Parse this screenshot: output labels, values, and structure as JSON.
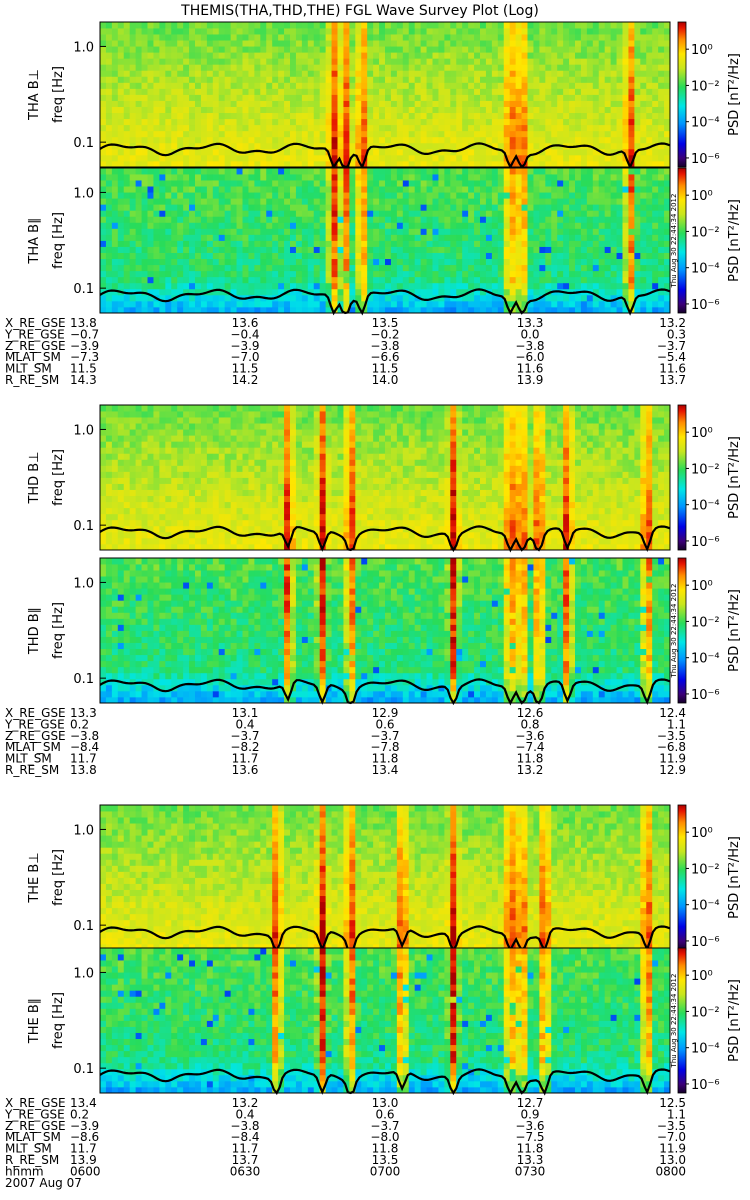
{
  "title": "THEMIS(THA,THD,THE) FGL Wave Survey Plot (Log)",
  "colorbar": {
    "label_prefix": "PSD",
    "label_unit": "[nT²/Hz]",
    "ticks": [
      "10⁰",
      "10⁻²",
      "10⁻⁴",
      "10⁻⁶"
    ],
    "range_log10": [
      -6.5,
      1.5
    ]
  },
  "stamp": "Thu Aug 30 22:44:34 2012",
  "chart_data": [
    {
      "type": "heatmap",
      "probe": "THA",
      "panels": [
        {
          "component": "THA B⊥",
          "ylabel": "freq [Hz]",
          "yscale": "log",
          "ylim": [
            0.055,
            1.8
          ],
          "yticks": [
            "1.0",
            "0.1"
          ]
        },
        {
          "component": "THA B∥",
          "ylabel": "freq [Hz]",
          "yscale": "log",
          "ylim": [
            0.055,
            1.8
          ],
          "yticks": [
            "1.0",
            "0.1"
          ]
        }
      ],
      "events": [
        0.41,
        0.43,
        0.46,
        0.72,
        0.74,
        0.93
      ],
      "trace": "black line near 0.08-0.1 Hz",
      "ephemeris": [
        {
          "name": "X_RE_GSE",
          "values": [
            "13.8",
            "13.6",
            "13.5",
            "13.3",
            "13.2"
          ]
        },
        {
          "name": "Y_RE_GSE",
          "values": [
            "−0.7",
            "−0.4",
            "−0.2",
            "0.0",
            "0.3"
          ]
        },
        {
          "name": "Z_RE_GSE",
          "values": [
            "−3.9",
            "−3.9",
            "−3.8",
            "−3.8",
            "−3.7"
          ]
        },
        {
          "name": "MLAT_SM",
          "values": [
            "−7.3",
            "−7.0",
            "−6.6",
            "−6.0",
            "−5.4"
          ]
        },
        {
          "name": "MLT_SM",
          "values": [
            "11.5",
            "11.5",
            "11.5",
            "11.6",
            "11.6"
          ]
        },
        {
          "name": "R_RE_SM",
          "values": [
            "14.3",
            "14.2",
            "14.0",
            "13.9",
            "13.7"
          ]
        }
      ]
    },
    {
      "type": "heatmap",
      "probe": "THD",
      "panels": [
        {
          "component": "THD B⊥",
          "ylabel": "freq [Hz]",
          "yscale": "log",
          "ylim": [
            0.055,
            1.8
          ],
          "yticks": [
            "1.0",
            "0.1"
          ]
        },
        {
          "component": "THD B∥",
          "ylabel": "freq [Hz]",
          "yscale": "log",
          "ylim": [
            0.055,
            1.8
          ],
          "yticks": [
            "1.0",
            "0.1"
          ]
        }
      ],
      "events": [
        0.33,
        0.39,
        0.44,
        0.62,
        0.72,
        0.74,
        0.77,
        0.82,
        0.96
      ],
      "trace": "black line near 0.08-0.1 Hz",
      "ephemeris": [
        {
          "name": "X_RE_GSE",
          "values": [
            "13.3",
            "13.1",
            "12.9",
            "12.6",
            "12.4"
          ]
        },
        {
          "name": "Y_RE_GSE",
          "values": [
            "0.2",
            "0.4",
            "0.6",
            "0.8",
            "1.1"
          ]
        },
        {
          "name": "Z_RE_GSE",
          "values": [
            "−3.8",
            "−3.7",
            "−3.7",
            "−3.6",
            "−3.5"
          ]
        },
        {
          "name": "MLAT_SM",
          "values": [
            "−8.4",
            "−8.2",
            "−7.8",
            "−7.4",
            "−6.8"
          ]
        },
        {
          "name": "MLT_SM",
          "values": [
            "11.7",
            "11.7",
            "11.8",
            "11.8",
            "11.9"
          ]
        },
        {
          "name": "R_RE_SM",
          "values": [
            "13.8",
            "13.6",
            "13.4",
            "13.2",
            "12.9"
          ]
        }
      ]
    },
    {
      "type": "heatmap",
      "probe": "THE",
      "panels": [
        {
          "component": "THE B⊥",
          "ylabel": "freq [Hz]",
          "yscale": "log",
          "ylim": [
            0.055,
            1.8
          ],
          "yticks": [
            "1.0",
            "0.1"
          ]
        },
        {
          "component": "THE B∥",
          "ylabel": "freq [Hz]",
          "yscale": "log",
          "ylim": [
            0.055,
            1.8
          ],
          "yticks": [
            "1.0",
            "0.1"
          ]
        }
      ],
      "events": [
        0.31,
        0.39,
        0.44,
        0.53,
        0.62,
        0.72,
        0.74,
        0.78,
        0.96
      ],
      "trace": "black line near 0.08-0.1 Hz",
      "ephemeris": [
        {
          "name": "X_RE_GSE",
          "values": [
            "13.4",
            "13.2",
            "13.0",
            "12.7",
            "12.5"
          ]
        },
        {
          "name": "Y_RE_GSE",
          "values": [
            "0.2",
            "0.4",
            "0.6",
            "0.9",
            "1.1"
          ]
        },
        {
          "name": "Z_RE_GSE",
          "values": [
            "−3.9",
            "−3.8",
            "−3.7",
            "−3.6",
            "−3.5"
          ]
        },
        {
          "name": "MLAT_SM",
          "values": [
            "−8.6",
            "−8.4",
            "−8.0",
            "−7.5",
            "−7.0"
          ]
        },
        {
          "name": "MLT_SM",
          "values": [
            "11.7",
            "11.7",
            "11.8",
            "11.8",
            "11.9"
          ]
        },
        {
          "name": "R_RE_SM",
          "values": [
            "13.9",
            "13.7",
            "13.5",
            "13.3",
            "13.0"
          ]
        },
        {
          "name": "hhmm",
          "values": [
            "0600",
            "0630",
            "0700",
            "0730",
            "0800"
          ]
        }
      ],
      "date": "2007 Aug 07"
    }
  ]
}
